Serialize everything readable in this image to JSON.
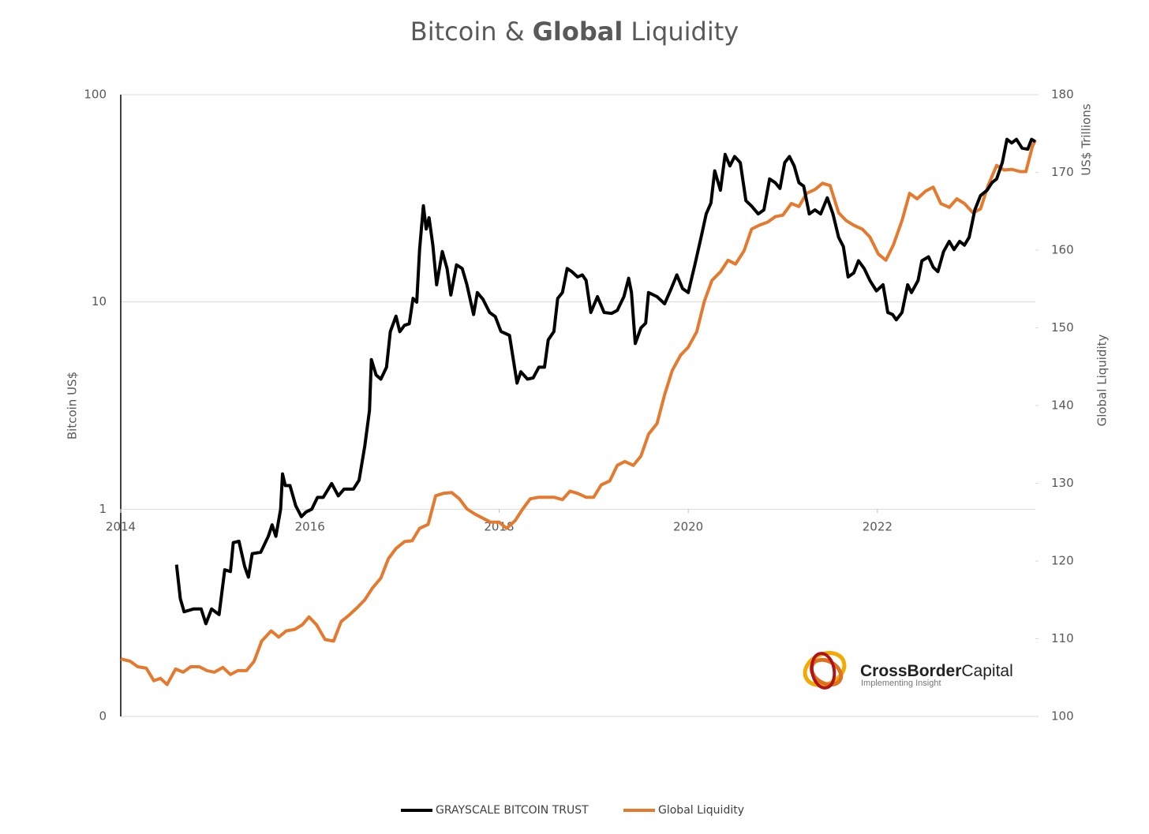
{
  "chart_data": {
    "type": "line",
    "title": [
      "Bitcoin &",
      "Global",
      "Liquidity"
    ],
    "title_bold": [
      false,
      true,
      false
    ],
    "y_label": "Bitcoin US$",
    "y2_label": "Global Liquidity",
    "y2_unit": "US$ Trillions",
    "logo": {
      "text": [
        "CrossBorder",
        "Capital"
      ],
      "tagline": "Implementing Insight"
    },
    "xlim": [
      2014,
      2023.67
    ],
    "xticks": [
      2014,
      2016,
      2018,
      2020,
      2022
    ],
    "ylim": [
      0.1,
      100
    ],
    "ylog": true,
    "yticks": [
      {
        "value": 0.1,
        "label": "0"
      },
      1,
      10,
      100
    ],
    "y2lim": [
      100,
      180
    ],
    "y2ticks": [
      100,
      110,
      120,
      130,
      140,
      150,
      160,
      170,
      180
    ],
    "grid": true,
    "legend": "bottom",
    "series": [
      {
        "name": "GRAYSCALE BITCOIN TRUST",
        "color": "#000000",
        "axis": "y",
        "x": [
          2014.59,
          2014.63,
          2014.67,
          2014.77,
          2014.85,
          2014.9,
          2014.96,
          2015.04,
          2015.1,
          2015.16,
          2015.19,
          2015.25,
          2015.31,
          2015.35,
          2015.39,
          2015.48,
          2015.56,
          2015.6,
          2015.64,
          2015.69,
          2015.71,
          2015.74,
          2015.79,
          2015.85,
          2015.91,
          2015.96,
          2016.02,
          2016.08,
          2016.14,
          2016.23,
          2016.3,
          2016.36,
          2016.46,
          2016.52,
          2016.58,
          2016.63,
          2016.65,
          2016.7,
          2016.75,
          2016.81,
          2016.85,
          2016.91,
          2016.95,
          2017.0,
          2017.05,
          2017.09,
          2017.13,
          2017.16,
          2017.2,
          2017.23,
          2017.26,
          2017.3,
          2017.34,
          2017.4,
          2017.45,
          2017.49,
          2017.55,
          2017.61,
          2017.66,
          2017.73,
          2017.77,
          2017.83,
          2017.9,
          2017.96,
          2018.02,
          2018.11,
          2018.19,
          2018.23,
          2018.3,
          2018.36,
          2018.42,
          2018.48,
          2018.52,
          2018.58,
          2018.62,
          2018.67,
          2018.72,
          2018.77,
          2018.83,
          2018.88,
          2018.92,
          2018.97,
          2019.04,
          2019.11,
          2019.19,
          2019.25,
          2019.32,
          2019.37,
          2019.4,
          2019.44,
          2019.5,
          2019.55,
          2019.58,
          2019.67,
          2019.75,
          2019.82,
          2019.88,
          2019.94,
          2020.0,
          2020.07,
          2020.14,
          2020.19,
          2020.24,
          2020.28,
          2020.34,
          2020.39,
          2020.44,
          2020.49,
          2020.55,
          2020.61,
          2020.67,
          2020.74,
          2020.8,
          2020.86,
          2020.92,
          2020.97,
          2021.02,
          2021.07,
          2021.12,
          2021.17,
          2021.22,
          2021.28,
          2021.34,
          2021.4,
          2021.47,
          2021.53,
          2021.59,
          2021.64,
          2021.69,
          2021.75,
          2021.8,
          2021.86,
          2021.92,
          2021.99,
          2022.06,
          2022.11,
          2022.16,
          2022.2,
          2022.26,
          2022.32,
          2022.36,
          2022.43,
          2022.47,
          2022.54,
          2022.59,
          2022.64,
          2022.7,
          2022.76,
          2022.81,
          2022.87,
          2022.92,
          2022.97,
          2023.03,
          2023.09,
          2023.16,
          2023.21,
          2023.26,
          2023.32,
          2023.37,
          2023.42,
          2023.47,
          2023.53,
          2023.59,
          2023.63,
          2023.67
        ],
        "values": [
          0.54,
          0.37,
          0.32,
          0.33,
          0.33,
          0.28,
          0.33,
          0.31,
          0.51,
          0.5,
          0.69,
          0.7,
          0.53,
          0.47,
          0.61,
          0.62,
          0.74,
          0.84,
          0.74,
          1.0,
          1.48,
          1.3,
          1.3,
          1.04,
          0.92,
          0.97,
          1.0,
          1.14,
          1.14,
          1.33,
          1.16,
          1.25,
          1.25,
          1.38,
          2.01,
          2.99,
          5.27,
          4.44,
          4.24,
          4.84,
          7.19,
          8.54,
          7.19,
          7.71,
          7.85,
          10.4,
          9.98,
          17.9,
          29.1,
          22.5,
          25.5,
          18.8,
          12.1,
          17.5,
          14.5,
          10.8,
          15.1,
          14.5,
          12.1,
          8.7,
          11.1,
          10.3,
          8.9,
          8.5,
          7.2,
          6.9,
          4.06,
          4.6,
          4.24,
          4.3,
          4.84,
          4.84,
          6.56,
          7.19,
          10.4,
          11.1,
          14.5,
          14.0,
          13.2,
          13.5,
          12.7,
          8.9,
          10.6,
          8.9,
          8.8,
          9.1,
          10.6,
          13.0,
          11.1,
          6.3,
          7.5,
          7.9,
          11.1,
          10.6,
          9.8,
          11.6,
          13.5,
          11.6,
          11.1,
          15.1,
          20.9,
          26.6,
          30.0,
          42.9,
          34.6,
          51.5,
          45.3,
          50.3,
          47.0,
          30.8,
          29.0,
          26.6,
          27.8,
          39.2,
          37.6,
          35.3,
          47.0,
          50.3,
          45.3,
          37.6,
          36.2,
          26.6,
          27.8,
          26.6,
          31.8,
          26.6,
          20.5,
          18.5,
          13.2,
          13.8,
          15.8,
          14.5,
          12.7,
          11.3,
          12.1,
          8.9,
          8.7,
          8.2,
          8.9,
          12.1,
          11.1,
          12.7,
          15.8,
          16.5,
          14.7,
          14.0,
          17.5,
          19.6,
          17.9,
          19.6,
          18.8,
          20.5,
          27.8,
          32.6,
          34.6,
          37.6,
          39.2,
          47.0,
          60.9,
          58.5,
          60.9,
          55.2,
          54.6,
          60.9,
          59.3
        ]
      },
      {
        "name": "Global Liquidity",
        "color": "#e57a2f",
        "axis": "y2",
        "x": [
          2014.0,
          2014.1,
          2014.18,
          2014.27,
          2014.35,
          2014.42,
          2014.49,
          2014.58,
          2014.66,
          2014.74,
          2014.83,
          2014.91,
          2014.99,
          2015.08,
          2015.16,
          2015.24,
          2015.33,
          2015.41,
          2015.49,
          2015.59,
          2015.67,
          2015.75,
          2015.84,
          2015.92,
          2015.99,
          2016.07,
          2016.16,
          2016.25,
          2016.33,
          2016.41,
          2016.5,
          2016.58,
          2016.66,
          2016.75,
          2016.83,
          2016.91,
          2017.0,
          2017.08,
          2017.16,
          2017.25,
          2017.33,
          2017.41,
          2017.5,
          2017.58,
          2017.66,
          2017.75,
          2017.83,
          2017.91,
          2018.0,
          2018.08,
          2018.17,
          2018.25,
          2018.33,
          2018.42,
          2018.5,
          2018.58,
          2018.67,
          2018.75,
          2018.83,
          2018.92,
          2019.0,
          2019.08,
          2019.17,
          2019.25,
          2019.33,
          2019.42,
          2019.5,
          2019.58,
          2019.67,
          2019.75,
          2019.83,
          2019.92,
          2020.0,
          2020.09,
          2020.17,
          2020.25,
          2020.34,
          2020.42,
          2020.5,
          2020.59,
          2020.67,
          2020.75,
          2020.84,
          2020.92,
          2021.0,
          2021.09,
          2021.17,
          2021.25,
          2021.34,
          2021.42,
          2021.5,
          2021.59,
          2021.67,
          2021.75,
          2021.84,
          2021.92,
          2022.01,
          2022.09,
          2022.17,
          2022.26,
          2022.34,
          2022.42,
          2022.51,
          2022.59,
          2022.67,
          2022.76,
          2022.84,
          2022.92,
          2023.01,
          2023.09,
          2023.17,
          2023.26,
          2023.34,
          2023.42,
          2023.51,
          2023.57,
          2023.64,
          2023.67
        ],
        "values": [
          107.4,
          107.1,
          106.4,
          106.2,
          104.6,
          104.9,
          104.1,
          106.1,
          105.7,
          106.4,
          106.4,
          105.9,
          105.7,
          106.3,
          105.4,
          105.9,
          105.9,
          107.1,
          109.7,
          111.0,
          110.2,
          111.0,
          111.2,
          111.8,
          112.8,
          111.8,
          109.9,
          109.7,
          112.2,
          113.0,
          114.0,
          115.0,
          116.5,
          117.8,
          120.3,
          121.6,
          122.5,
          122.6,
          124.2,
          124.7,
          128.4,
          128.7,
          128.8,
          128.0,
          126.7,
          126.0,
          125.5,
          125.0,
          125.0,
          124.2,
          125.2,
          126.7,
          128.0,
          128.2,
          128.2,
          128.2,
          127.9,
          129.0,
          128.7,
          128.2,
          128.2,
          129.8,
          130.3,
          132.3,
          132.8,
          132.3,
          133.5,
          136.3,
          137.7,
          141.4,
          144.5,
          146.5,
          147.5,
          149.5,
          153.4,
          156.1,
          157.2,
          158.7,
          158.2,
          159.9,
          162.7,
          163.2,
          163.6,
          164.3,
          164.5,
          166.0,
          165.6,
          167.3,
          167.8,
          168.6,
          168.3,
          164.8,
          163.8,
          163.2,
          162.7,
          161.7,
          159.5,
          158.7,
          160.7,
          163.8,
          167.3,
          166.6,
          167.6,
          168.1,
          166.0,
          165.5,
          166.6,
          166.0,
          164.8,
          165.3,
          168.3,
          170.9,
          170.3,
          170.4,
          170.1,
          170.1,
          173.4,
          174.1
        ]
      }
    ]
  }
}
